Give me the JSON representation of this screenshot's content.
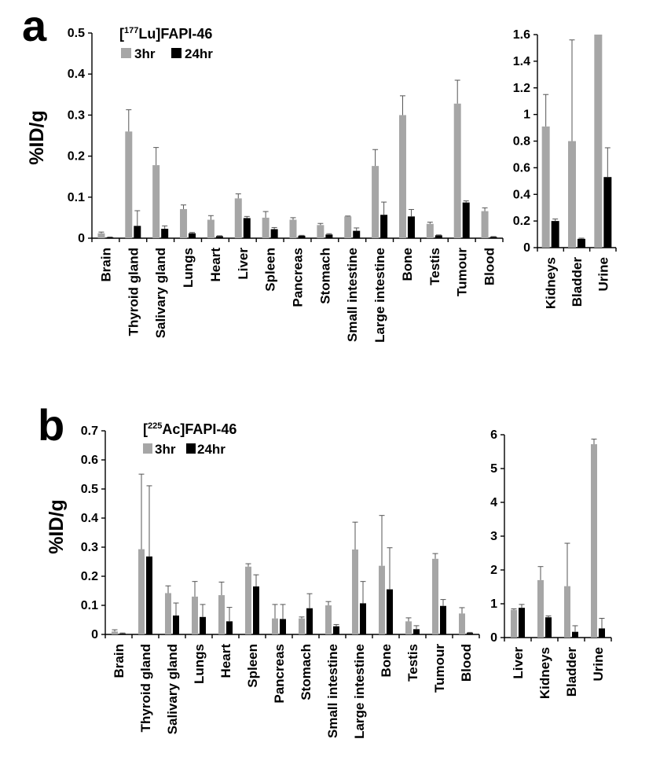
{
  "chart_data": [
    {
      "panel": "a",
      "type": "bar",
      "ylabel": "%ID/g",
      "legend": {
        "title_pre": "[",
        "title_sup": "177",
        "title_post": "Lu]FAPI-46",
        "placement": "top-left"
      },
      "series_labels": [
        "3hr",
        "24hr"
      ],
      "colors": {
        "3hr": "#a6a6a6",
        "24hr": "#000000",
        "error": "#555555"
      },
      "main": {
        "categories": [
          "Brain",
          "Thyroid gland",
          "Salivary gland",
          "Lungs",
          "Heart",
          "Liver",
          "Spleen",
          "Pancreas",
          "Stomach",
          "Small intestine",
          "Large intestine",
          "Bone",
          "Testis",
          "Tumour",
          "Blood"
        ],
        "ylim": [
          0,
          0.5
        ],
        "yticks": [
          "0",
          "0.1",
          "0.2",
          "0.3",
          "0.4",
          "0.5"
        ],
        "series": [
          {
            "name": "3hr",
            "values": [
              0.012,
              0.26,
              0.178,
              0.071,
              0.045,
              0.097,
              0.05,
              0.045,
              0.032,
              0.053,
              0.176,
              0.3,
              0.035,
              0.328,
              0.066
            ],
            "errors": [
              0.003,
              0.053,
              0.043,
              0.01,
              0.01,
              0.011,
              0.015,
              0.005,
              0.004,
              0.001,
              0.04,
              0.047,
              0.004,
              0.057,
              0.008
            ]
          },
          {
            "name": "24hr",
            "values": [
              0.002,
              0.03,
              0.023,
              0.012,
              0.005,
              0.049,
              0.022,
              0.006,
              0.009,
              0.018,
              0.057,
              0.053,
              0.007,
              0.087,
              0.003
            ],
            "errors": [
              0.001,
              0.037,
              0.007,
              0.002,
              0.001,
              0.004,
              0.004,
              0.001,
              0.002,
              0.007,
              0.031,
              0.017,
              0.001,
              0.004,
              0.001
            ]
          }
        ]
      },
      "inset": {
        "categories": [
          "Kidneys",
          "Bladder",
          "Urine"
        ],
        "ylim": [
          0,
          1.6
        ],
        "yticks": [
          "0",
          "0.2",
          "0.4",
          "0.6",
          "0.8",
          "1",
          "1.2",
          "1.4",
          "1.6"
        ],
        "series": [
          {
            "name": "3hr",
            "values": [
              0.91,
              0.8,
              1.6
            ],
            "errors": [
              0.24,
              0.76,
              0
            ]
          },
          {
            "name": "24hr",
            "values": [
              0.2,
              0.066,
              0.53
            ],
            "errors": [
              0.015,
              0.005,
              0.22
            ]
          }
        ]
      }
    },
    {
      "panel": "b",
      "type": "bar",
      "ylabel": "%ID/g",
      "legend": {
        "title_pre": "[",
        "title_sup": "225",
        "title_post": "Ac]FAPI-46",
        "placement": "top-left"
      },
      "series_labels": [
        "3hr",
        "24hr"
      ],
      "colors": {
        "3hr": "#a6a6a6",
        "24hr": "#000000",
        "error": "#555555"
      },
      "main": {
        "categories": [
          "Brain",
          "Thyroid gland",
          "Salivary gland",
          "Lungs",
          "Heart",
          "Spleen",
          "Pancreas",
          "Stomach",
          "Small intestine",
          "Large intestine",
          "Bone",
          "Testis",
          "Tumour",
          "Blood"
        ],
        "ylim": [
          0,
          0.7
        ],
        "yticks": [
          "0",
          "0.1",
          "0.2",
          "0.3",
          "0.4",
          "0.5",
          "0.6",
          "0.7"
        ],
        "series": [
          {
            "name": "3hr",
            "values": [
              0.01,
              0.293,
              0.142,
              0.13,
              0.135,
              0.233,
              0.055,
              0.055,
              0.1,
              0.292,
              0.236,
              0.045,
              0.26,
              0.072
            ],
            "errors": [
              0.006,
              0.258,
              0.025,
              0.052,
              0.045,
              0.01,
              0.048,
              0.005,
              0.013,
              0.094,
              0.173,
              0.012,
              0.018,
              0.02
            ]
          },
          {
            "name": "24hr",
            "values": [
              0.003,
              0.268,
              0.065,
              0.06,
              0.045,
              0.165,
              0.053,
              0.09,
              0.028,
              0.107,
              0.155,
              0.018,
              0.098,
              0.005
            ],
            "errors": [
              0.002,
              0.243,
              0.043,
              0.043,
              0.048,
              0.04,
              0.05,
              0.05,
              0.006,
              0.075,
              0.143,
              0.012,
              0.022,
              0.002
            ]
          }
        ]
      },
      "inset": {
        "categories": [
          "Liver",
          "Kidneys",
          "Bladder",
          "Urine"
        ],
        "ylim": [
          0,
          6
        ],
        "yticks": [
          "0",
          "1",
          "2",
          "3",
          "4",
          "5",
          "6"
        ],
        "series": [
          {
            "name": "3hr",
            "values": [
              0.82,
              1.7,
              1.52,
              5.72
            ],
            "errors": [
              0.03,
              0.4,
              1.27,
              0.15
            ]
          },
          {
            "name": "24hr",
            "values": [
              0.88,
              0.6,
              0.17,
              0.27
            ],
            "errors": [
              0.1,
              0.04,
              0.18,
              0.3
            ]
          }
        ]
      }
    }
  ]
}
